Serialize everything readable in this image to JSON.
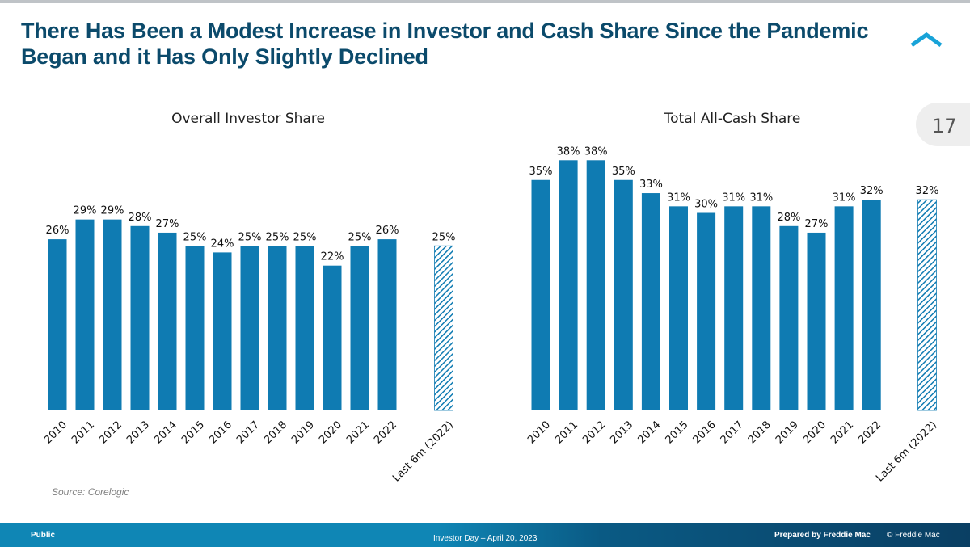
{
  "slide": {
    "title": "There Has Been a Modest Increase in Investor and Cash Share Since the Pandemic Began and it Has Only Slightly Declined",
    "page_number": "17",
    "source": "Source: Corelogic"
  },
  "footer": {
    "classification": "Public",
    "event": "Investor Day – April 20, 2023",
    "prepared_by": "Prepared by Freddie Mac",
    "copyright": "© Freddie Mac"
  },
  "colors": {
    "bar": "#0f7bb2",
    "title": "#0b4a6b",
    "hatch": "#0f7bb2"
  },
  "chart_data": [
    {
      "type": "bar",
      "title": "Overall Investor Share",
      "categories": [
        "2010",
        "2011",
        "2012",
        "2013",
        "2014",
        "2015",
        "2016",
        "2017",
        "2018",
        "2019",
        "2020",
        "2021",
        "2022",
        "Last 6m (2022)"
      ],
      "values": [
        26,
        29,
        29,
        28,
        27,
        25,
        24,
        25,
        25,
        25,
        22,
        25,
        26,
        25
      ],
      "labels": [
        "26%",
        "29%",
        "29%",
        "28%",
        "27%",
        "25%",
        "24%",
        "25%",
        "25%",
        "25%",
        "22%",
        "25%",
        "26%",
        "25%"
      ],
      "hatched_last": true,
      "xlabel": "",
      "ylabel": "",
      "ylim": [
        0,
        45
      ],
      "grid": false
    },
    {
      "type": "bar",
      "title": "Total All-Cash Share",
      "categories": [
        "2010",
        "2011",
        "2012",
        "2013",
        "2014",
        "2015",
        "2016",
        "2017",
        "2018",
        "2019",
        "2020",
        "2021",
        "2022",
        "Last 6m (2022)"
      ],
      "values": [
        35,
        38,
        38,
        35,
        33,
        31,
        30,
        31,
        31,
        28,
        27,
        31,
        32,
        32
      ],
      "labels": [
        "35%",
        "38%",
        "38%",
        "35%",
        "33%",
        "31%",
        "30%",
        "31%",
        "31%",
        "28%",
        "27%",
        "31%",
        "32%",
        "32%"
      ],
      "hatched_last": true,
      "xlabel": "",
      "ylabel": "",
      "ylim": [
        0,
        45
      ],
      "grid": false
    }
  ]
}
